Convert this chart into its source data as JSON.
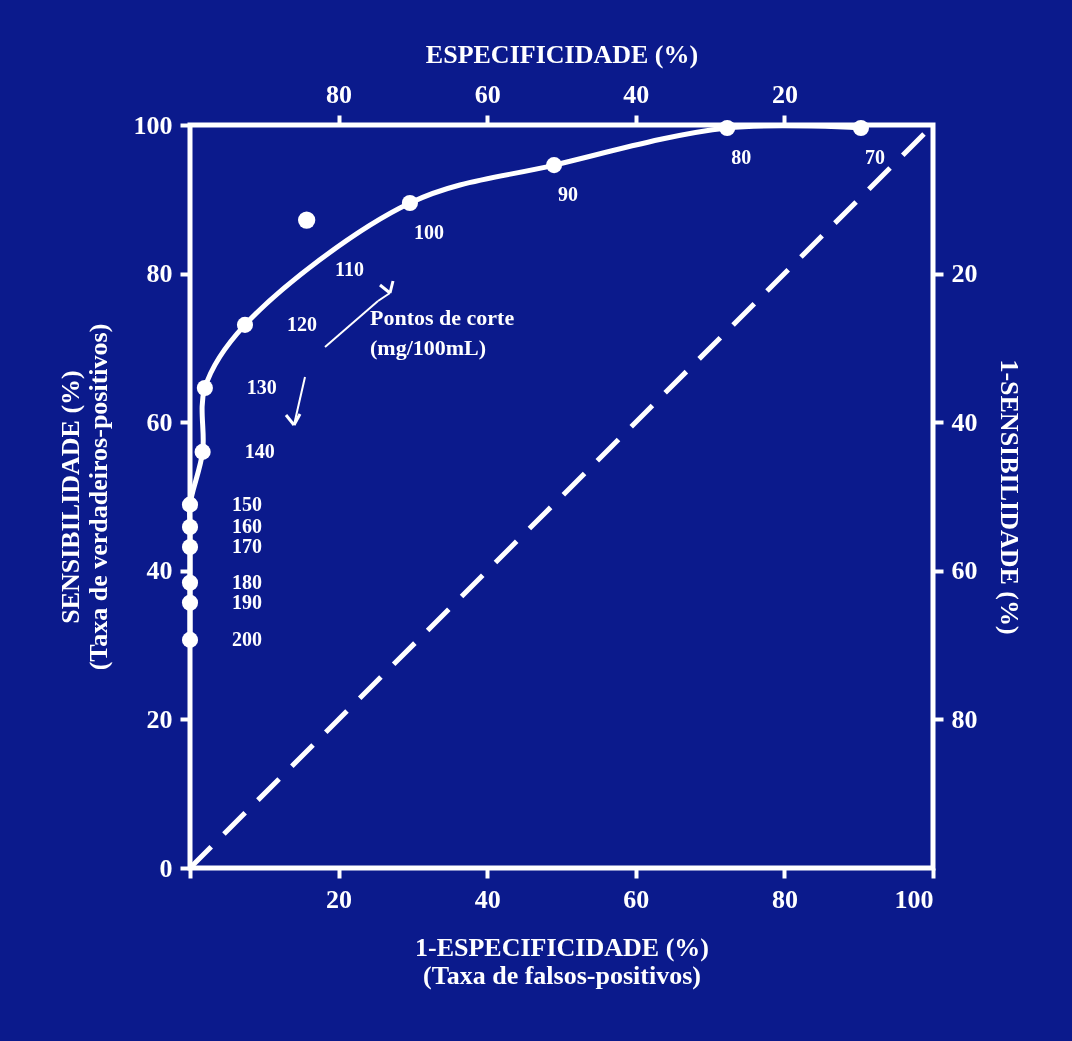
{
  "chart_data": {
    "type": "line",
    "xlabel": "1-ESPECIFICIDADE  (%)\n(Taxa de falsos-positivos)",
    "ylabel": "SENSIBILIDADE  (%)\n(Taxa de verdadeiros-positivos)",
    "x2label": "ESPECIFICIDADE  (%)",
    "y2label": "1-SENSIBILIDADE  (%)",
    "xlim": [
      0,
      100
    ],
    "xticks": [
      {
        "value": 0,
        "label": null
      },
      20,
      40,
      60,
      80,
      100
    ],
    "ylim": [
      0,
      100
    ],
    "yticks": [
      0,
      20,
      40,
      60,
      80,
      100
    ],
    "x2lim": [
      100,
      0
    ],
    "x2ticks": [
      80,
      60,
      40,
      20
    ],
    "y2lim": [
      100,
      0
    ],
    "y2ticks": [
      20,
      40,
      60,
      80
    ],
    "grid": false,
    "series": [
      {
        "color": "#ffffff",
        "marker": "circle",
        "line_style": "solid",
        "x": [
          0,
          0,
          0,
          0,
          0,
          0,
          1.7,
          2.0,
          7.4,
          29.6,
          49,
          72.3,
          90.3
        ],
        "values": [
          30.7,
          35.7,
          38.4,
          43.2,
          45.9,
          48.9,
          56,
          64.6,
          73.1,
          89.5,
          94.6,
          99.6,
          99.6
        ]
      },
      {
        "type": "scatter",
        "color": "#ffffff",
        "marker": "circle",
        "x": [
          15.7
        ],
        "values": [
          87.2
        ]
      },
      {
        "type": "line",
        "color": "#ffffff",
        "marker": "none",
        "line_style": "dashed",
        "x": [
          0,
          100
        ],
        "values": [
          0,
          100
        ]
      }
    ],
    "annotations": [
      {
        "text": "200",
        "x": 0,
        "y": 30.7
      },
      {
        "text": "190",
        "x": 0,
        "y": 35.7
      },
      {
        "text": "180",
        "x": 0,
        "y": 38.4
      },
      {
        "text": "170",
        "x": 0,
        "y": 43.2
      },
      {
        "text": "160",
        "x": 0,
        "y": 45.9
      },
      {
        "text": "150",
        "x": 0,
        "y": 48.9
      },
      {
        "text": "140",
        "x": 1.7,
        "y": 56
      },
      {
        "text": "130",
        "x": 2.0,
        "y": 64.6
      },
      {
        "text": "120",
        "x": 7.4,
        "y": 73.1
      },
      "110",
      {
        "text": "100",
        "x": 29.6,
        "y": 89.5
      },
      {
        "text": "90",
        "x": 49,
        "y": 94.6
      },
      {
        "text": "80",
        "x": 72.3,
        "y": 99.6
      },
      {
        "text": "70",
        "x": 90.3,
        "y": 99.6
      },
      "Pontos de corte\n(mg/100mL)"
    ]
  }
}
